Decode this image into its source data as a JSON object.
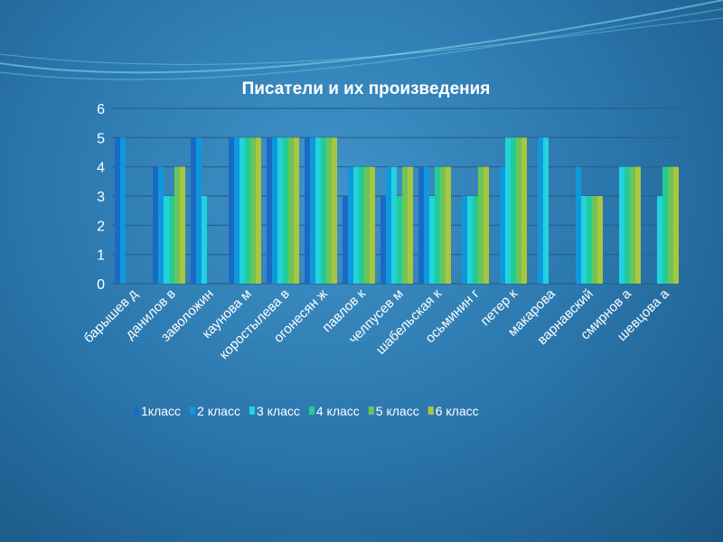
{
  "chart_data": {
    "type": "bar",
    "title": "Писатели и их произведения",
    "categories": [
      "барышев д",
      "данилов в",
      "заволожин",
      "каунова м",
      "коростылева в",
      "огонесян ж",
      "павлов к",
      "челпусев м",
      "шабельская к",
      "осьминин г",
      "петер к",
      "макарова",
      "варнавский",
      "смирнов а",
      "шевцова а"
    ],
    "series": [
      {
        "name": "1класс",
        "color": "#1a6ac4",
        "values": [
          5,
          4,
          5,
          5,
          5,
          5,
          3,
          3,
          4,
          0,
          0,
          0,
          0,
          0,
          0
        ]
      },
      {
        "name": "2 класс",
        "color": "#1098dc",
        "values": [
          5,
          4,
          5,
          5,
          5,
          5,
          4,
          4,
          4,
          3,
          4,
          5,
          4,
          0,
          0
        ]
      },
      {
        "name": "3 класс",
        "color": "#22d2de",
        "values": [
          0,
          3,
          3,
          5,
          5,
          5,
          4,
          4,
          3,
          3,
          5,
          5,
          3,
          4,
          3
        ]
      },
      {
        "name": "4 класс",
        "color": "#22cc96",
        "values": [
          0,
          3,
          0,
          5,
          5,
          5,
          4,
          3,
          4,
          3,
          5,
          0,
          3,
          4,
          4
        ]
      },
      {
        "name": "5 класс",
        "color": "#6cc45a",
        "values": [
          0,
          4,
          0,
          5,
          5,
          5,
          4,
          4,
          4,
          4,
          5,
          0,
          3,
          4,
          4
        ]
      },
      {
        "name": "6 класс",
        "color": "#a9c640",
        "values": [
          0,
          4,
          0,
          5,
          5,
          5,
          4,
          4,
          4,
          4,
          5,
          0,
          3,
          4,
          4
        ]
      }
    ],
    "yticks": [
      "0",
      "1",
      "2",
      "3",
      "4",
      "5",
      "6"
    ],
    "ylim": [
      0,
      6
    ],
    "grid": true,
    "legend": "bottom"
  }
}
